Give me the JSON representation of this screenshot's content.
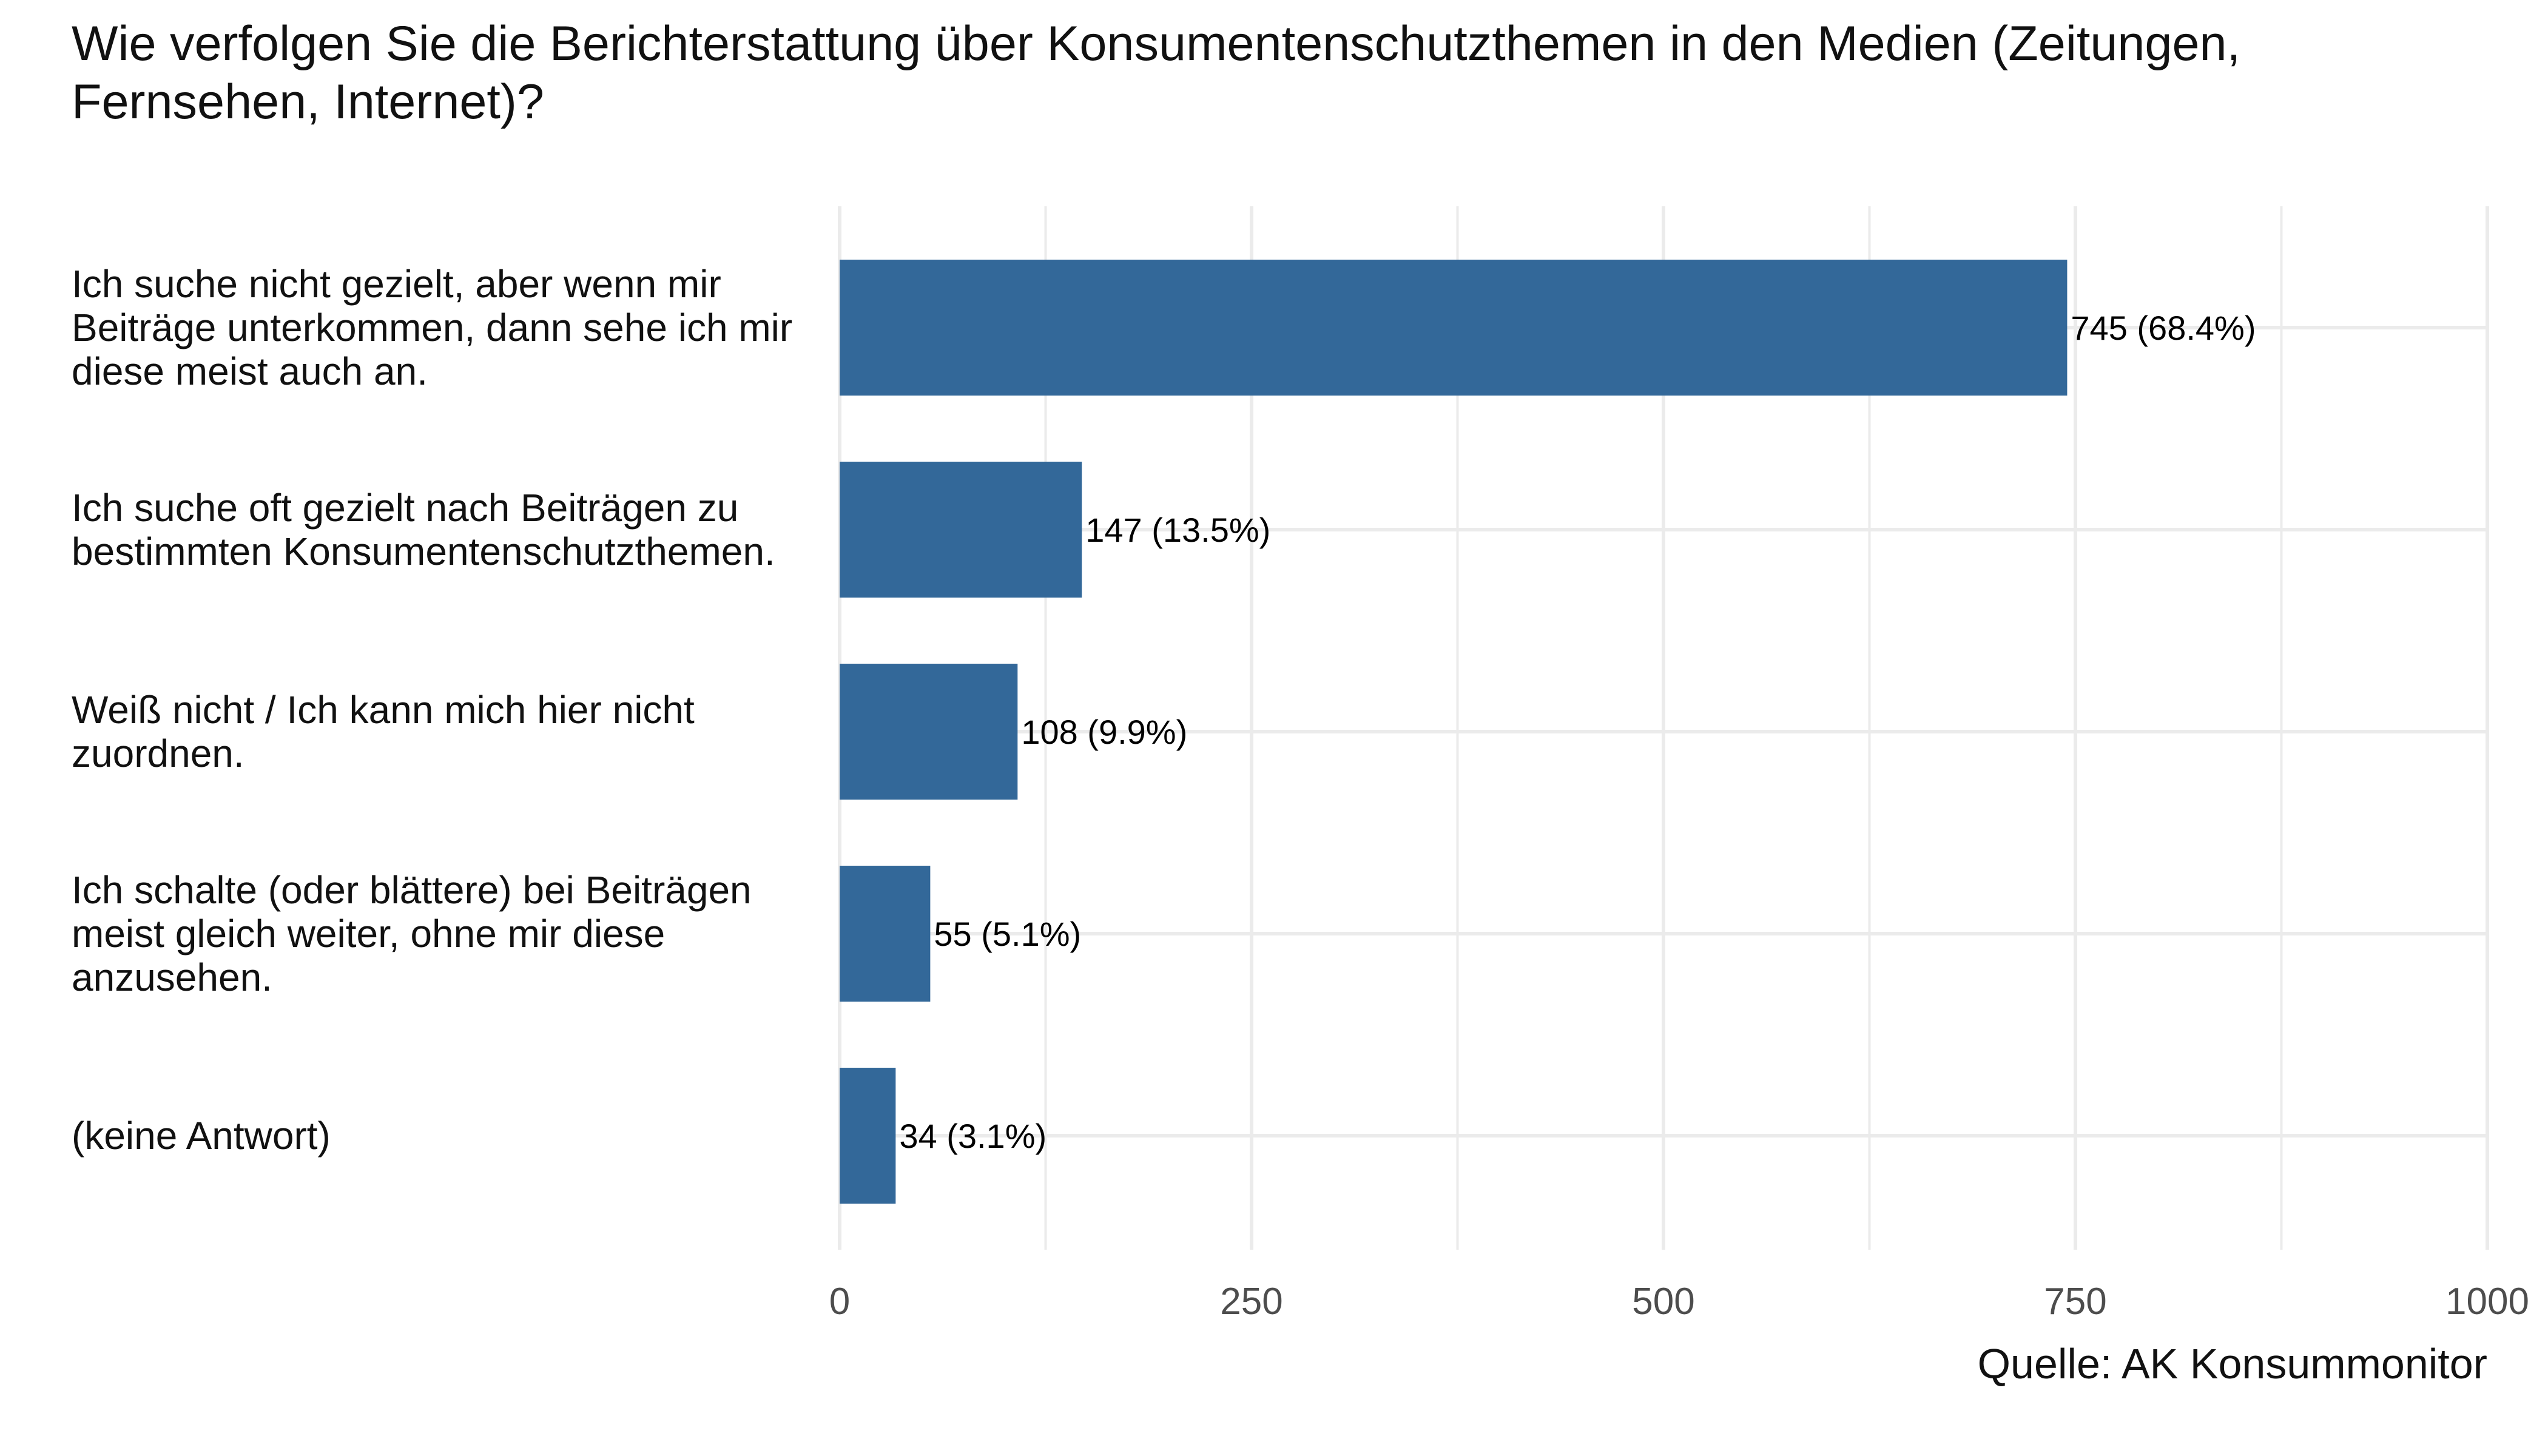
{
  "chart_data": {
    "type": "bar",
    "orientation": "horizontal",
    "title": "Wie verfolgen Sie die Berichterstattung über Konsumentenschutzthemen in den Medien (Zeitungen, Fernsehen, Internet)?",
    "categories": [
      "Ich suche nicht gezielt, aber wenn mir Beiträge unterkommen, dann sehe ich mir diese meist auch an.",
      "Ich suche oft gezielt nach Beiträgen zu bestimmten Konsumentenschutzthemen.",
      "Weiß nicht / Ich kann mich hier nicht zuordnen.",
      "Ich schalte (oder blättere) bei Beiträgen meist gleich weiter, ohne mir diese anzusehen.",
      "(keine Antwort)"
    ],
    "values": [
      745,
      147,
      108,
      55,
      34
    ],
    "data_labels": [
      "745 (68.4%)",
      "147 (13.5%)",
      "108 (9.9%)",
      "55 (5.1%)",
      "34 (3.1%)"
    ],
    "xlim": [
      0,
      1000
    ],
    "xticks": [
      0,
      250,
      500,
      750,
      1000
    ],
    "xtick_labels": [
      "0",
      "250",
      "500",
      "750",
      "1000"
    ],
    "grid": true,
    "legend": "none",
    "bar_color": "#336899",
    "grid_color": "#ebebeb",
    "source": "Quelle: AK Konsummonitor"
  }
}
